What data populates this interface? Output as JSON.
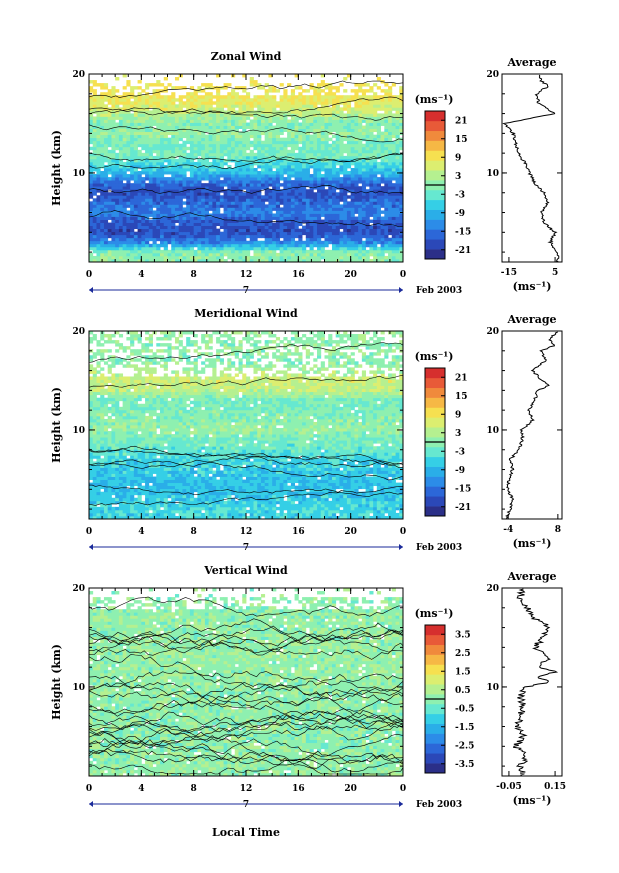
{
  "colors": {
    "colormap": [
      "#2b2f88",
      "#2b48b8",
      "#2c67d8",
      "#2c8ce8",
      "#2aaee8",
      "#35cfe6",
      "#66e8d0",
      "#8ef0b0",
      "#b5f090",
      "#dcee70",
      "#f6e050",
      "#f6b845",
      "#f08a3c",
      "#e85a38",
      "#d62f2e"
    ],
    "line": "#000000",
    "axis_marker": "#1a2a9a"
  },
  "x_label": "Local Time",
  "date_label": "Feb 2003",
  "date_marker": "7",
  "unit_label": "(ms⁻¹)",
  "average_title": "Average",
  "height_label": "Height (km)",
  "x_ticks": [
    "0",
    "4",
    "8",
    "12",
    "16",
    "20",
    "0"
  ],
  "chart_data": [
    {
      "type": "heatmap",
      "title": "Zonal Wind",
      "ylabel": "Height (km)",
      "xlabel": "",
      "xlim": [
        0,
        24
      ],
      "ylim": [
        1,
        20
      ],
      "y_ticks": [
        "10",
        "20"
      ],
      "colorbar": {
        "unit": "(ms⁻¹)",
        "ticks": [
          "21",
          "15",
          "9",
          "3",
          "-3",
          "-9",
          "-15",
          "-21"
        ],
        "range": [
          -24,
          24
        ]
      },
      "profile_summary": [
        [
          2,
          0
        ],
        [
          3,
          -14
        ],
        [
          4,
          -20
        ],
        [
          5,
          -19
        ],
        [
          6,
          -15
        ],
        [
          7,
          -17
        ],
        [
          8,
          -20
        ],
        [
          9,
          -17
        ],
        [
          10,
          -9
        ],
        [
          11,
          -5
        ],
        [
          12,
          -1
        ],
        [
          13,
          -2
        ],
        [
          14,
          1
        ],
        [
          15,
          -1
        ],
        [
          16,
          4
        ],
        [
          17,
          8
        ],
        [
          18,
          9
        ],
        [
          19,
          9
        ],
        [
          20,
          10
        ]
      ],
      "average": {
        "title": "Average",
        "xlabel": "(ms⁻¹)",
        "x_ticks": [
          "-15",
          "5"
        ],
        "y_ticks": [
          "10",
          "20"
        ],
        "xlim": [
          -18,
          8
        ],
        "profile": [
          [
            1.5,
            6
          ],
          [
            2,
            6
          ],
          [
            3,
            3
          ],
          [
            4,
            5
          ],
          [
            5,
            0
          ],
          [
            6,
            -1
          ],
          [
            7,
            2
          ],
          [
            8,
            0
          ],
          [
            9,
            -4
          ],
          [
            10,
            -6
          ],
          [
            11,
            -8
          ],
          [
            12,
            -11
          ],
          [
            13,
            -12
          ],
          [
            14,
            -13
          ],
          [
            15,
            -17
          ],
          [
            16,
            5
          ],
          [
            17,
            -2
          ],
          [
            18,
            -3
          ],
          [
            18.8,
            2
          ],
          [
            19.3,
            -1
          ],
          [
            20,
            -2
          ]
        ]
      }
    },
    {
      "type": "heatmap",
      "title": "Meridional Wind",
      "ylabel": "Height (km)",
      "xlabel": "",
      "xlim": [
        0,
        24
      ],
      "ylim": [
        1,
        20
      ],
      "y_ticks": [
        "10",
        "20"
      ],
      "colorbar": {
        "unit": "(ms⁻¹)",
        "ticks": [
          "21",
          "15",
          "9",
          "3",
          "-3",
          "-9",
          "-15",
          "-21"
        ],
        "range": [
          -24,
          24
        ]
      },
      "profile_summary": [
        [
          2,
          -6
        ],
        [
          3,
          -7
        ],
        [
          4,
          -9
        ],
        [
          5,
          -8
        ],
        [
          6,
          -7
        ],
        [
          7,
          -6
        ],
        [
          8,
          -3
        ],
        [
          9,
          -2
        ],
        [
          10,
          1
        ],
        [
          11,
          0
        ],
        [
          12,
          -1
        ],
        [
          13,
          -2
        ],
        [
          14,
          4
        ],
        [
          15,
          6
        ],
        [
          16,
          3
        ],
        [
          17,
          -1
        ],
        [
          18,
          1
        ],
        [
          19,
          0
        ],
        [
          20,
          2
        ]
      ],
      "average": {
        "title": "Average",
        "xlabel": "(ms⁻¹)",
        "x_ticks": [
          "-4",
          "8"
        ],
        "y_ticks": [
          "10",
          "20"
        ],
        "xlim": [
          -5.5,
          9
        ],
        "profile": [
          [
            1,
            -4.5
          ],
          [
            2,
            -3.5
          ],
          [
            3,
            -3
          ],
          [
            4,
            -4
          ],
          [
            5,
            -3.8
          ],
          [
            6,
            -3
          ],
          [
            7,
            -3.5
          ],
          [
            8,
            -1.5
          ],
          [
            9,
            -0.5
          ],
          [
            10,
            -0.8
          ],
          [
            11,
            2
          ],
          [
            12,
            1
          ],
          [
            13,
            2.5
          ],
          [
            14,
            3
          ],
          [
            14.5,
            6
          ],
          [
            15,
            4
          ],
          [
            16,
            2
          ],
          [
            17,
            5
          ],
          [
            18,
            4
          ],
          [
            18.5,
            7
          ],
          [
            19.2,
            6
          ],
          [
            20,
            8
          ]
        ]
      }
    },
    {
      "type": "heatmap",
      "title": "Vertical Wind",
      "ylabel": "Height (km)",
      "xlabel": "Local Time",
      "xlim": [
        0,
        24
      ],
      "ylim": [
        1,
        20
      ],
      "y_ticks": [
        "10",
        "20"
      ],
      "colorbar": {
        "unit": "(ms⁻¹)",
        "ticks": [
          "3.5",
          "2.5",
          "1.5",
          "0.5",
          "-0.5",
          "-1.5",
          "-2.5",
          "-3.5"
        ],
        "range": [
          -4,
          4
        ]
      },
      "profile_summary": [
        [
          2,
          0.1
        ],
        [
          4,
          0.0
        ],
        [
          6,
          0.05
        ],
        [
          8,
          0.03
        ],
        [
          10,
          0.1
        ],
        [
          12,
          0.12
        ],
        [
          14,
          0.15
        ],
        [
          16,
          0.1
        ],
        [
          18,
          0.05
        ],
        [
          20,
          0.02
        ]
      ],
      "average": {
        "title": "Average",
        "xlabel": "(ms⁻¹)",
        "x_ticks": [
          "-0.05",
          "0.15"
        ],
        "y_ticks": [
          "10",
          "20"
        ],
        "xlim": [
          -0.08,
          0.18
        ],
        "profile": [
          [
            1,
            0.02
          ],
          [
            2,
            0.0
          ],
          [
            3,
            0.03
          ],
          [
            4,
            -0.02
          ],
          [
            5,
            0.01
          ],
          [
            6,
            -0.01
          ],
          [
            7,
            0.0
          ],
          [
            8,
            0.01
          ],
          [
            9,
            0.0
          ],
          [
            10,
            0.02
          ],
          [
            10.5,
            0.12
          ],
          [
            11,
            0.08
          ],
          [
            11.5,
            0.15
          ],
          [
            12,
            0.09
          ],
          [
            13,
            0.12
          ],
          [
            14,
            0.06
          ],
          [
            15,
            0.1
          ],
          [
            16,
            0.13
          ],
          [
            17,
            0.05
          ],
          [
            18,
            0.03
          ],
          [
            19,
            0.0
          ],
          [
            20,
            0.01
          ]
        ]
      }
    }
  ]
}
